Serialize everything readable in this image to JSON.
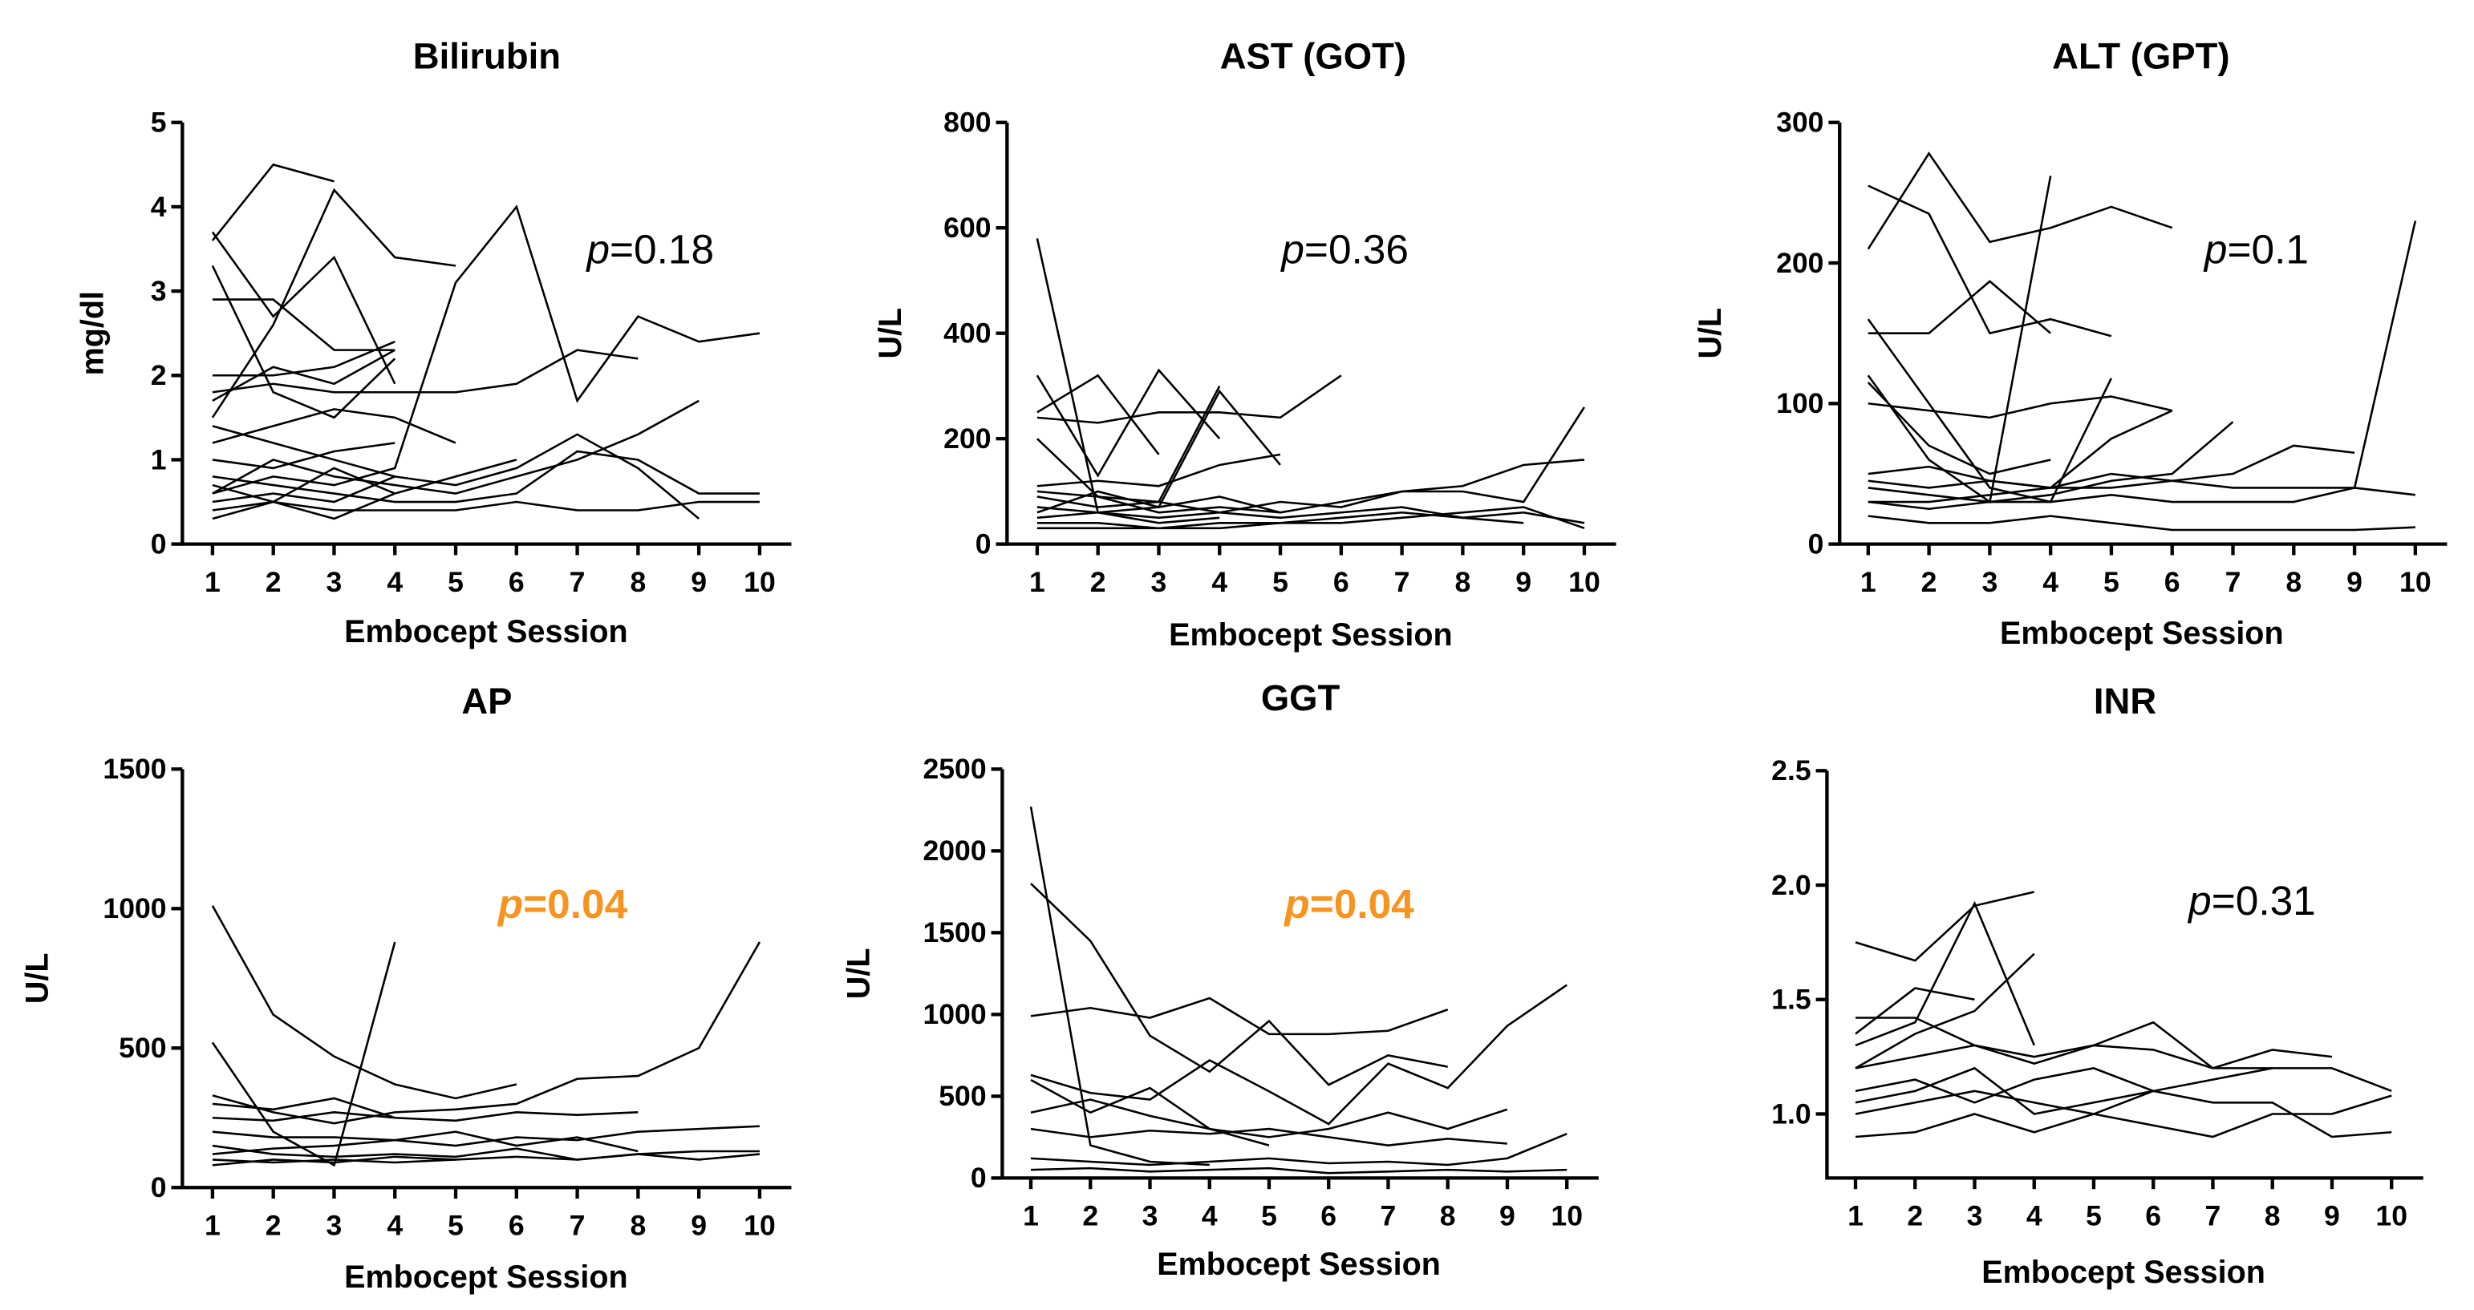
{
  "chart_data": [
    {
      "type": "line",
      "title": "Bilirubin",
      "xlabel": "Embocept Session",
      "ylabel": "mg/dl",
      "xticks": [
        "1",
        "2",
        "3",
        "4",
        "5",
        "6",
        "7",
        "8",
        "9",
        "10"
      ],
      "yticks": [
        0,
        1,
        2,
        3,
        4,
        5
      ],
      "ylim": [
        0,
        5
      ],
      "annotation": {
        "prefix": "p",
        "text": "=0.18",
        "color": "#000000",
        "bold": false
      },
      "series": [
        [
          3.6,
          4.5,
          4.3
        ],
        [
          1.5,
          2.6,
          4.2,
          3.4,
          3.3
        ],
        [
          0.6,
          0.8,
          0.7,
          0.9,
          3.1,
          4.0,
          1.7,
          2.7,
          2.4,
          2.5
        ],
        [
          1.8,
          1.9,
          1.8,
          1.8,
          1.8,
          1.9,
          2.3,
          2.2
        ],
        [
          0.5,
          0.6,
          0.5,
          0.8,
          0.7,
          0.9,
          1.3,
          0.9,
          0.3
        ],
        [
          0.8,
          0.7,
          0.6,
          0.5,
          0.5,
          0.6,
          1.1,
          1.0,
          0.6,
          0.6
        ],
        [
          0.4,
          0.5,
          0.4,
          0.4,
          0.4,
          0.5,
          0.4,
          0.4,
          0.5,
          0.5
        ],
        [
          2.0,
          2.0,
          2.1,
          2.4
        ],
        [
          1.2,
          1.4,
          1.6,
          1.5,
          1.2
        ],
        [
          0.6,
          1.0,
          0.8,
          0.7,
          0.6,
          0.8,
          1.0,
          1.3,
          1.7
        ],
        [
          2.9,
          2.9,
          2.3,
          2.3
        ],
        [
          1.0,
          0.9,
          1.1,
          1.2
        ],
        [
          3.3,
          1.8,
          1.5,
          2.2
        ],
        [
          0.3,
          0.5,
          0.3,
          0.6
        ],
        [
          3.7,
          2.7,
          3.4,
          1.9
        ],
        [
          1.7,
          2.1,
          1.9,
          2.3
        ],
        [
          0.7,
          0.5,
          0.9,
          0.6,
          0.8,
          1.0
        ],
        [
          1.4,
          1.2,
          1.0,
          0.8
        ]
      ]
    },
    {
      "type": "line",
      "title": "AST (GOT)",
      "xlabel": "Embocept Session",
      "ylabel": "U/L",
      "xticks": [
        "1",
        "2",
        "3",
        "4",
        "5",
        "6",
        "7",
        "8",
        "9",
        "10"
      ],
      "yticks": [
        0,
        200,
        400,
        600,
        800
      ],
      "ylim": [
        0,
        800
      ],
      "annotation": {
        "prefix": "p",
        "text": "=0.36",
        "color": "#000000",
        "bold": false
      },
      "series": [
        [
          580,
          60,
          40,
          50
        ],
        [
          320,
          130,
          330,
          200
        ],
        [
          250,
          320,
          170
        ],
        [
          60,
          100,
          70,
          290,
          150
        ],
        [
          100,
          90,
          80,
          300
        ],
        [
          110,
          120,
          110,
          150,
          170
        ],
        [
          240,
          230,
          250,
          250,
          240,
          320
        ],
        [
          70,
          60,
          50,
          60,
          80,
          70,
          100,
          110,
          150,
          160
        ],
        [
          50,
          60,
          70,
          90,
          60,
          80,
          100,
          100,
          80,
          260
        ],
        [
          40,
          40,
          30,
          40,
          40,
          50,
          60,
          50,
          60,
          40
        ],
        [
          30,
          30,
          30,
          30,
          40,
          40,
          50,
          60,
          70,
          30
        ],
        [
          200,
          90,
          60,
          70,
          60
        ],
        [
          90,
          70,
          80,
          60,
          50,
          60,
          70,
          50,
          40
        ]
      ]
    },
    {
      "type": "line",
      "title": "ALT (GPT)",
      "xlabel": "Embocept Session",
      "ylabel": "U/L",
      "xticks": [
        "1",
        "2",
        "3",
        "4",
        "5",
        "6",
        "7",
        "8",
        "9",
        "10"
      ],
      "yticks": [
        0,
        100,
        200,
        300
      ],
      "ylim": [
        0,
        300
      ],
      "annotation": {
        "prefix": "p",
        "text": "=0.1",
        "color": "#000000",
        "bold": false
      },
      "series": [
        [
          210,
          278,
          215,
          225,
          240,
          225
        ],
        [
          255,
          235,
          150,
          160,
          148
        ],
        [
          150,
          150,
          187,
          150
        ],
        [
          120,
          60,
          30,
          262
        ],
        [
          160,
          100,
          40,
          30,
          118
        ],
        [
          100,
          95,
          90,
          100,
          105,
          95
        ],
        [
          50,
          55,
          45,
          40,
          75,
          95
        ],
        [
          40,
          35,
          30,
          35,
          45,
          50,
          87
        ],
        [
          30,
          30,
          35,
          40,
          50,
          45,
          50,
          70,
          65
        ],
        [
          30,
          25,
          30,
          30,
          35,
          30,
          30,
          30,
          40,
          230
        ],
        [
          20,
          15,
          15,
          20,
          15,
          10,
          10,
          10,
          10,
          12
        ],
        [
          45,
          40,
          45,
          40,
          40,
          45,
          40,
          40,
          40,
          35
        ],
        [
          115,
          70,
          50,
          60
        ]
      ]
    },
    {
      "type": "line",
      "title": "AP",
      "xlabel": "Embocept Session",
      "ylabel": "U/L",
      "xticks": [
        "1",
        "2",
        "3",
        "4",
        "5",
        "6",
        "7",
        "8",
        "9",
        "10"
      ],
      "yticks": [
        0,
        500,
        1000,
        1500
      ],
      "ylim": [
        0,
        1500
      ],
      "annotation": {
        "prefix": "p",
        "text": "=0.04",
        "color": "#F7931E",
        "bold": true
      },
      "series": [
        [
          1010,
          620,
          470,
          370,
          320,
          370
        ],
        [
          520,
          200,
          80,
          880
        ],
        [
          330,
          270,
          230,
          270,
          280,
          300,
          390,
          400,
          500,
          880
        ],
        [
          200,
          180,
          180,
          170,
          150,
          180,
          170,
          200,
          210,
          220
        ],
        [
          150,
          120,
          110,
          120,
          110,
          140,
          100,
          120,
          130,
          130
        ],
        [
          100,
          90,
          100,
          90,
          100,
          110,
          100,
          120,
          100,
          120
        ],
        [
          250,
          240,
          270,
          250,
          240,
          270,
          260,
          270
        ],
        [
          120,
          140,
          150,
          170,
          200,
          150,
          180,
          130
        ],
        [
          300,
          280,
          320,
          250
        ],
        [
          80,
          100,
          90,
          110,
          100
        ]
      ]
    },
    {
      "type": "line",
      "title": "GGT",
      "xlabel": "Embocept Session",
      "ylabel": "U/L",
      "xticks": [
        "1",
        "2",
        "3",
        "4",
        "5",
        "6",
        "7",
        "8",
        "9",
        "10"
      ],
      "yticks": [
        0,
        500,
        1000,
        1500,
        2000,
        2500
      ],
      "ylim": [
        0,
        2500
      ],
      "annotation": {
        "prefix": "p",
        "text": "=0.04",
        "color": "#F7931E",
        "bold": true
      },
      "series": [
        [
          2270,
          200,
          100,
          80
        ],
        [
          1800,
          1450,
          870,
          650,
          960,
          570,
          750,
          680
        ],
        [
          990,
          1040,
          980,
          1100,
          880,
          880,
          900,
          1030
        ],
        [
          630,
          520,
          480,
          720,
          530,
          330,
          700,
          550,
          930,
          1180
        ],
        [
          400,
          480,
          380,
          300,
          250,
          300,
          400,
          300,
          420
        ],
        [
          300,
          250,
          290,
          270,
          300,
          250,
          200,
          240,
          210
        ],
        [
          120,
          100,
          80,
          100,
          120,
          90,
          100,
          80,
          120,
          270
        ],
        [
          50,
          60,
          40,
          50,
          60,
          30,
          40,
          50,
          40,
          50
        ],
        [
          600,
          400,
          550,
          300,
          200
        ]
      ]
    },
    {
      "type": "line",
      "title": "INR",
      "xlabel": "Embocept Session",
      "ylabel": "",
      "xticks": [
        "1",
        "2",
        "3",
        "4",
        "5",
        "6",
        "7",
        "8",
        "9",
        "10"
      ],
      "yticks": [
        "1.0",
        "1.5",
        "2.0",
        "2.5"
      ],
      "ylim": [
        0.72,
        2.5
      ],
      "annotation": {
        "prefix": "p",
        "text": "=0.31",
        "color": "#000000",
        "bold": false
      },
      "series": [
        [
          1.75,
          1.67,
          1.91,
          1.97
        ],
        [
          1.3,
          1.4,
          1.92,
          1.3
        ],
        [
          1.35,
          1.55,
          1.5
        ],
        [
          1.2,
          1.35,
          1.45,
          1.7
        ],
        [
          1.42,
          1.42,
          1.3,
          1.25,
          1.3,
          1.4,
          1.2,
          1.2
        ],
        [
          1.1,
          1.15,
          1.05,
          1.15,
          1.2,
          1.1,
          1.15,
          1.2,
          1.2,
          1.1
        ],
        [
          1.0,
          1.05,
          1.1,
          1.05,
          1.0,
          1.1,
          1.05,
          1.05,
          0.9,
          0.92
        ],
        [
          0.9,
          0.92,
          1.0,
          0.92,
          1.0,
          0.95,
          0.9,
          1.0,
          1.0,
          1.08
        ],
        [
          1.2,
          1.25,
          1.3,
          1.22,
          1.3,
          1.28,
          1.2,
          1.28,
          1.25
        ],
        [
          1.05,
          1.1,
          1.2,
          1.0,
          1.05,
          1.1
        ]
      ]
    }
  ]
}
